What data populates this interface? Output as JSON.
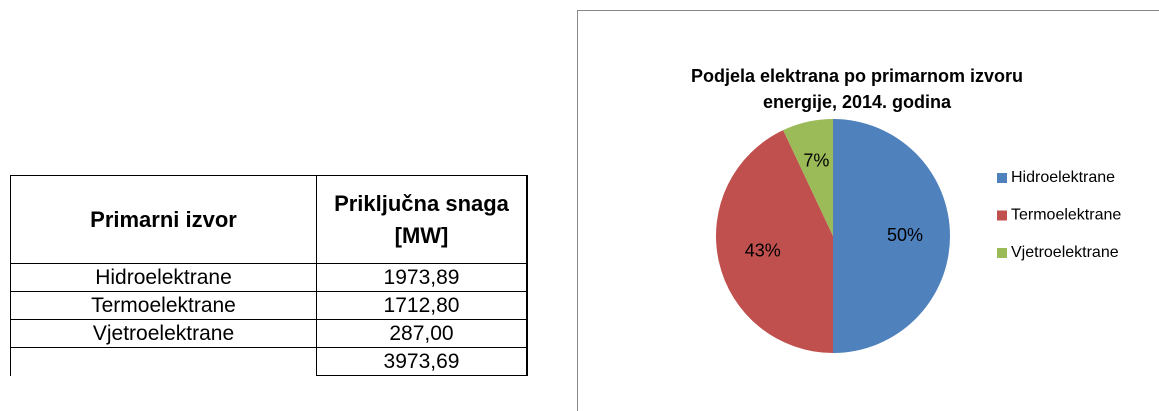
{
  "table": {
    "header": [
      "Primarni izvor",
      "Priključna snaga [MW]"
    ],
    "rows": [
      [
        "Hidroelektrane",
        "1973,89"
      ],
      [
        "Termoelektrane",
        "1712,80"
      ],
      [
        "Vjetroelektrane",
        "287,00"
      ]
    ],
    "total": "3973,69"
  },
  "chart_data": {
    "type": "pie",
    "title": "Podjela elektrana po primarnom izvoru energije, 2014. godina",
    "categories": [
      "Hidroelektrane",
      "Termoelektrane",
      "Vjetroelektrane"
    ],
    "values": [
      50,
      43,
      7
    ],
    "value_labels": [
      "50%",
      "43%",
      "7%"
    ],
    "colors": [
      "#4f81bd",
      "#c0504d",
      "#9bbb59"
    ],
    "legend": "right"
  }
}
